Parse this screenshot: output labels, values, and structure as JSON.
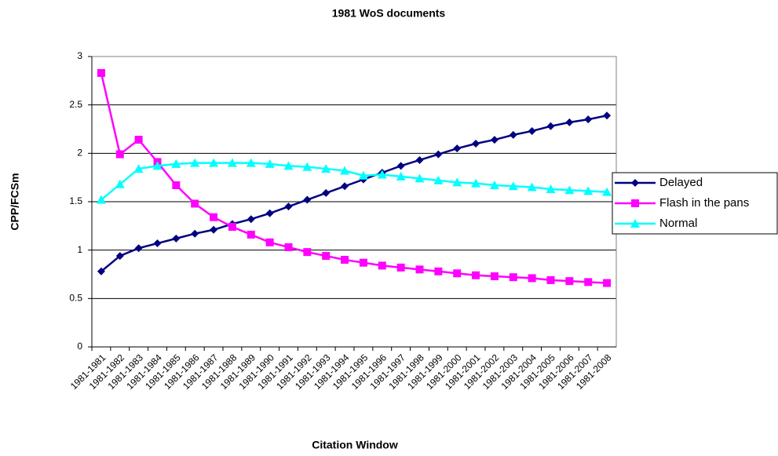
{
  "chart_data": {
    "type": "line",
    "title": "1981 WoS documents",
    "x_label": "Citation Window",
    "y_label": "CPP/FCSm",
    "categories": [
      "1981-1981",
      "1981-1982",
      "1981-1983",
      "1981-1984",
      "1981-1985",
      "1981-1986",
      "1981-1987",
      "1981-1988",
      "1981-1989",
      "1981-1990",
      "1981-1991",
      "1981-1992",
      "1981-1993",
      "1981-1994",
      "1981-1995",
      "1981-1996",
      "1981-1997",
      "1981-1998",
      "1981-1999",
      "1981-2000",
      "1981-2001",
      "1981-2002",
      "1981-2003",
      "1981-2004",
      "1981-2005",
      "1981-2006",
      "1981-2007",
      "1981-2008"
    ],
    "series": [
      {
        "name": "Delayed",
        "color": "#000080",
        "marker": "diamond",
        "values": [
          0.78,
          0.94,
          1.02,
          1.07,
          1.12,
          1.17,
          1.21,
          1.27,
          1.32,
          1.38,
          1.45,
          1.52,
          1.59,
          1.66,
          1.73,
          1.8,
          1.87,
          1.93,
          1.99,
          2.05,
          2.1,
          2.14,
          2.19,
          2.23,
          2.28,
          2.32,
          2.35,
          2.39
        ]
      },
      {
        "name": "Flash in the pans",
        "color": "#ff00ff",
        "marker": "square",
        "values": [
          2.83,
          1.99,
          2.14,
          1.91,
          1.67,
          1.48,
          1.34,
          1.24,
          1.16,
          1.08,
          1.03,
          0.98,
          0.94,
          0.9,
          0.87,
          0.84,
          0.82,
          0.8,
          0.78,
          0.76,
          0.74,
          0.73,
          0.72,
          0.71,
          0.69,
          0.68,
          0.67,
          0.66
        ]
      },
      {
        "name": "Normal",
        "color": "#00ffff",
        "marker": "triangle",
        "values": [
          1.52,
          1.68,
          1.84,
          1.87,
          1.89,
          1.9,
          1.9,
          1.9,
          1.9,
          1.89,
          1.87,
          1.86,
          1.84,
          1.82,
          1.77,
          1.78,
          1.76,
          1.74,
          1.72,
          1.7,
          1.69,
          1.67,
          1.66,
          1.65,
          1.63,
          1.62,
          1.61,
          1.6
        ]
      }
    ],
    "ylim": [
      0,
      3
    ],
    "yticks": [
      0,
      0.5,
      1,
      1.5,
      2,
      2.5,
      3
    ],
    "grid": true,
    "legend": "right"
  }
}
